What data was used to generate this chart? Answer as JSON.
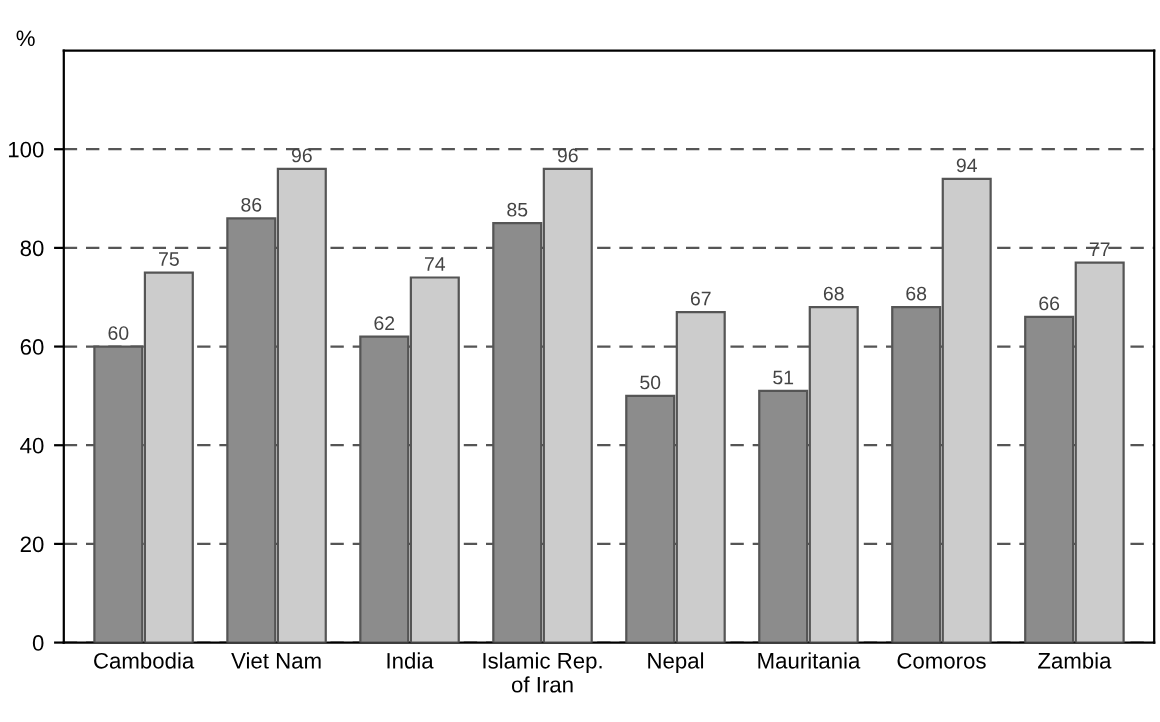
{
  "chart_data": {
    "type": "bar",
    "ylabel": "%",
    "categories": [
      "Cambodia",
      "Viet Nam",
      "India",
      "Islamic Rep.\nof Iran",
      "Nepal",
      "Mauritania",
      "Comoros",
      "Zambia"
    ],
    "series": [
      {
        "color": "#8c8c8c",
        "values": [
          60,
          86,
          62,
          85,
          50,
          51,
          68,
          66
        ]
      },
      {
        "color": "#cccccc",
        "values": [
          75,
          96,
          74,
          96,
          67,
          68,
          94,
          77
        ]
      }
    ],
    "ylim": [
      0,
      120
    ],
    "yticks": [
      0,
      20,
      40,
      60,
      80,
      100
    ],
    "grid": "y",
    "data_labels": true,
    "legend": false
  }
}
